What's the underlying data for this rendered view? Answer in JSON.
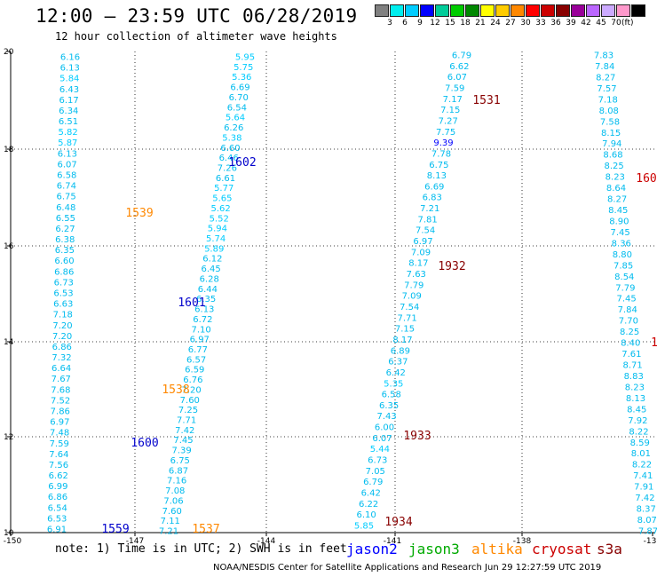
{
  "header": {
    "title": "12:00 – 23:59 UTC 06/28/2019",
    "subtitle": "12 hour collection of altimeter wave heights"
  },
  "legend": {
    "unit": "(ft)",
    "colors": [
      "#808080",
      "#00eeee",
      "#00ccff",
      "#0000ff",
      "#00cc99",
      "#00cc00",
      "#008800",
      "#ffff00",
      "#ffcc00",
      "#ff8800",
      "#ff0000",
      "#cc0000",
      "#880000",
      "#990099",
      "#bb66ff",
      "#ccaaff",
      "#ff99cc",
      "#000000"
    ],
    "ticks": [
      "3",
      "6",
      "9",
      "12",
      "15",
      "18",
      "21",
      "24",
      "27",
      "30",
      "33",
      "36",
      "39",
      "42",
      "45",
      "70"
    ]
  },
  "axes": {
    "x_ticks": [
      "-150",
      "-147",
      "-144",
      "-141",
      "-138",
      "-13"
    ],
    "y_ticks": [
      "20",
      "18",
      "16",
      "14",
      "12",
      "10"
    ]
  },
  "tracks": [
    {
      "values": [
        "6.16",
        "6.13",
        "5.84",
        "6.43",
        "6.17",
        "6.34",
        "6.51",
        "5.82",
        "5.87",
        "6.13",
        "6.07",
        "6.58",
        "6.74",
        "6.75",
        "6.48",
        "6.55",
        "6.27",
        "6.38",
        "6.35",
        "6.60",
        "6.86",
        "6.73",
        "6.53",
        "6.63",
        "7.18",
        "7.20",
        "7.20",
        "6.86",
        "7.32",
        "6.64",
        "7.67",
        "7.68",
        "7.52",
        "7.86",
        "6.97",
        "7.48",
        "7.59",
        "7.64",
        "7.56",
        "6.62",
        "6.99",
        "6.86",
        "6.54",
        "6.53",
        "6.91"
      ]
    },
    {
      "values": [
        "5.95",
        "5.75",
        "5.36",
        "6.69",
        "6.70",
        "6.54",
        "5.64",
        "6.26",
        "5.38",
        "6.60",
        "6.46",
        "7.26",
        "6.61",
        "5.77",
        "5.65",
        "5.62",
        "5.52",
        "5.94",
        "5.74",
        "5.89",
        "6.12",
        "6.45",
        "6.28",
        "6.44",
        "6.35",
        "6.13",
        "6.72",
        "7.10",
        "6.97",
        "6.77",
        "6.57",
        "6.59",
        "6.76",
        "7.20",
        "7.60",
        "7.25",
        "7.71",
        "7.42",
        "7.45",
        "7.39",
        "6.75",
        "6.87",
        "7.16",
        "7.08",
        "7.06",
        "7.60",
        "7.11",
        "7.21"
      ]
    },
    {
      "values": [
        "6.79",
        "6.62",
        "6.07",
        "7.59",
        "7.17",
        "7.15",
        "7.27",
        "7.75",
        "9.39",
        "7.78",
        "6.75",
        "8.13",
        "6.69",
        "6.83",
        "7.21",
        "7.81",
        "7.54",
        "6.97",
        "7.09",
        "8.17",
        "7.63",
        "7.79",
        "7.09",
        "7.54",
        "7.71",
        "7.15",
        "8.17",
        "6.89",
        "6.37",
        "6.42",
        "5.35",
        "6.58",
        "6.35",
        "7.43",
        "6.00",
        "6.07",
        "5.44",
        "6.73",
        "7.05",
        "6.79",
        "6.42",
        "6.22",
        "6.10",
        "5.85"
      ]
    },
    {
      "values": [
        "7.83",
        "7.84",
        "8.27",
        "7.57",
        "7.18",
        "8.08",
        "7.58",
        "8.15",
        "7.94",
        "8.68",
        "8.25",
        "8.23",
        "8.64",
        "8.27",
        "8.45",
        "8.90",
        "7.45",
        "8.36",
        "8.80",
        "7.85",
        "8.54",
        "7.79",
        "7.45",
        "7.84",
        "7.70",
        "8.25",
        "8.40",
        "7.61",
        "8.71",
        "8.83",
        "8.23",
        "8.13",
        "8.45",
        "7.92",
        "8.22",
        "8.59",
        "8.01",
        "8.22",
        "7.41",
        "7.91",
        "7.42",
        "8.37",
        "8.07",
        "7.87"
      ]
    }
  ],
  "time_stamps": [
    {
      "label": "1531",
      "color": "#880000"
    },
    {
      "label": "1602",
      "color": "#0000cc"
    },
    {
      "label": "1539",
      "color": "#ff8800"
    },
    {
      "label": "1932",
      "color": "#880000"
    },
    {
      "label": "1601",
      "color": "#0000cc"
    },
    {
      "label": "1538",
      "color": "#ff8800"
    },
    {
      "label": "1933",
      "color": "#880000"
    },
    {
      "label": "1600",
      "color": "#0000cc"
    },
    {
      "label": "1559",
      "color": "#0000cc"
    },
    {
      "label": "1537",
      "color": "#ff8800"
    },
    {
      "label": "1934",
      "color": "#880000"
    },
    {
      "label": "160",
      "color": "#cc0000"
    },
    {
      "label": "1",
      "color": "#cc0000"
    }
  ],
  "note": "note: 1) Time is in UTC; 2) SWH is in feet",
  "satellites": [
    {
      "label": "jason2",
      "color": "#0000ff"
    },
    {
      "label": "jason3",
      "color": "#00aa00"
    },
    {
      "label": "altika",
      "color": "#ff8800"
    },
    {
      "label": "cryosat",
      "color": "#cc0000"
    },
    {
      "label": "s3a",
      "color": "#880000"
    }
  ],
  "footer": "NOAA/NESDIS Center for Satellite Applications and Research    Jun 29 12:27:59 UTC 2019"
}
